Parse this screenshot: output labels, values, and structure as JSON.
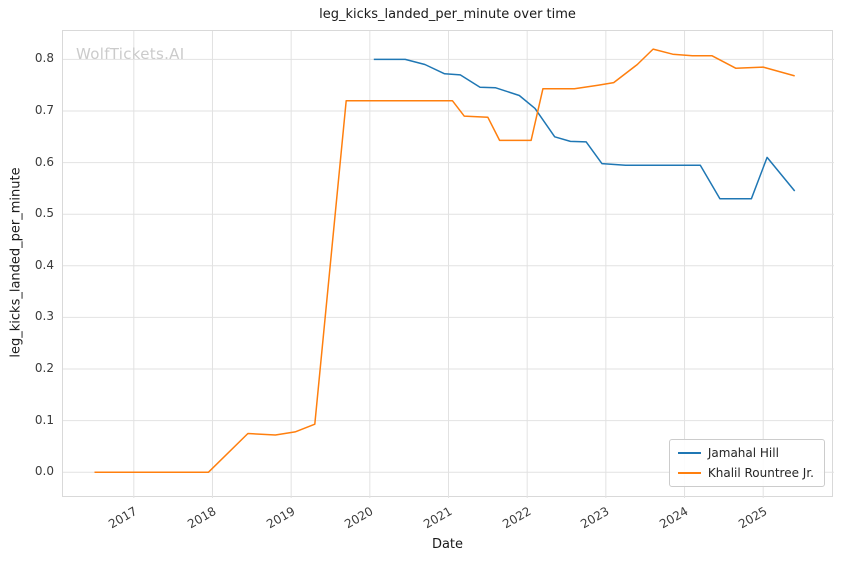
{
  "chart_data": {
    "type": "line",
    "title": "leg_kicks_landed_per_minute over time",
    "xlabel": "Date",
    "ylabel": "leg_kicks_landed_per_minute",
    "watermark": "WolfTickets.AI",
    "grid": true,
    "legend_position": "lower right",
    "xlim": [
      2016.1,
      2025.9
    ],
    "ylim": [
      -0.05,
      0.855
    ],
    "x_ticks": [
      2017,
      2018,
      2019,
      2020,
      2021,
      2022,
      2023,
      2024,
      2025
    ],
    "y_ticks": [
      0.0,
      0.1,
      0.2,
      0.3,
      0.4,
      0.5,
      0.6,
      0.7,
      0.8
    ],
    "series": [
      {
        "name": "Jamahal Hill",
        "color": "#1f77b4",
        "points": [
          [
            2020.05,
            0.8
          ],
          [
            2020.45,
            0.8
          ],
          [
            2020.7,
            0.79
          ],
          [
            2020.95,
            0.772
          ],
          [
            2021.15,
            0.77
          ],
          [
            2021.4,
            0.746
          ],
          [
            2021.6,
            0.745
          ],
          [
            2021.9,
            0.73
          ],
          [
            2022.1,
            0.705
          ],
          [
            2022.35,
            0.65
          ],
          [
            2022.55,
            0.641
          ],
          [
            2022.75,
            0.64
          ],
          [
            2022.95,
            0.598
          ],
          [
            2023.25,
            0.595
          ],
          [
            2023.7,
            0.595
          ],
          [
            2024.2,
            0.595
          ],
          [
            2024.45,
            0.53
          ],
          [
            2024.85,
            0.53
          ],
          [
            2025.05,
            0.61
          ],
          [
            2025.4,
            0.545
          ]
        ]
      },
      {
        "name": "Khalil Rountree Jr.",
        "color": "#ff7f0e",
        "points": [
          [
            2016.5,
            0.0
          ],
          [
            2016.95,
            0.0
          ],
          [
            2017.4,
            0.0
          ],
          [
            2017.95,
            0.0
          ],
          [
            2018.45,
            0.075
          ],
          [
            2018.8,
            0.072
          ],
          [
            2019.05,
            0.078
          ],
          [
            2019.3,
            0.093
          ],
          [
            2019.7,
            0.72
          ],
          [
            2020.2,
            0.72
          ],
          [
            2020.75,
            0.72
          ],
          [
            2021.05,
            0.72
          ],
          [
            2021.2,
            0.69
          ],
          [
            2021.5,
            0.688
          ],
          [
            2021.65,
            0.643
          ],
          [
            2021.9,
            0.643
          ],
          [
            2022.05,
            0.643
          ],
          [
            2022.2,
            0.743
          ],
          [
            2022.6,
            0.743
          ],
          [
            2022.9,
            0.75
          ],
          [
            2023.1,
            0.755
          ],
          [
            2023.4,
            0.79
          ],
          [
            2023.6,
            0.82
          ],
          [
            2023.85,
            0.81
          ],
          [
            2024.1,
            0.807
          ],
          [
            2024.35,
            0.807
          ],
          [
            2024.65,
            0.783
          ],
          [
            2025.0,
            0.785
          ],
          [
            2025.4,
            0.768
          ]
        ]
      }
    ]
  }
}
